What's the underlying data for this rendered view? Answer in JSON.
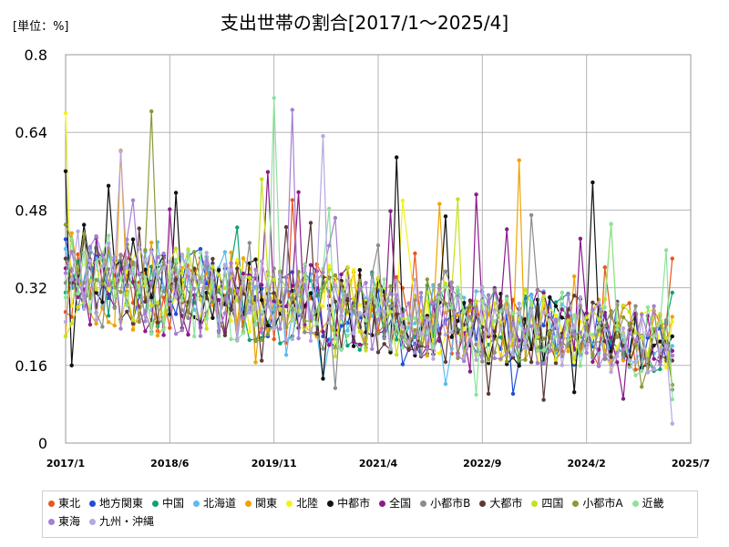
{
  "chart_data": {
    "type": "line",
    "title": "支出世帯の割合[2017/1～2025/4]",
    "unit_label": "[単位：%]",
    "x_ticks": [
      "2017/1",
      "2018/6",
      "2019/11",
      "2021/4",
      "2022/9",
      "2024/2",
      "2025/7"
    ],
    "x_range": [
      "2017/1",
      "2025/7"
    ],
    "y_ticks": [
      "0",
      "0.16",
      "0.32",
      "0.48",
      "0.64",
      "0.8"
    ],
    "ylim": [
      0,
      0.8
    ],
    "grid": true,
    "legend_position": "bottom",
    "series": [
      {
        "name": "東北",
        "color": "#e8561f",
        "seed": 11,
        "first": 0.27,
        "last": 0.38
      },
      {
        "name": "地方関東",
        "color": "#1f4fd8",
        "seed": 23,
        "first": 0.42,
        "last": 0.18
      },
      {
        "name": "中国",
        "color": "#11a074",
        "seed": 37,
        "first": 0.31,
        "last": 0.31
      },
      {
        "name": "北海道",
        "color": "#5bbcf0",
        "seed": 41,
        "first": 0.4,
        "last": 0.2
      },
      {
        "name": "関東",
        "color": "#f0a300",
        "seed": 53,
        "first": 0.22,
        "last": 0.26
      },
      {
        "name": "北陸",
        "color": "#f2f21a",
        "seed": 67,
        "first": 0.68,
        "last": 0.25
      },
      {
        "name": "中都市",
        "color": "#111111",
        "seed": 71,
        "first": 0.56,
        "last": 0.22
      },
      {
        "name": "全国",
        "color": "#8b1a8b",
        "seed": 83,
        "first": 0.36,
        "last": 0.19
      },
      {
        "name": "小都市B",
        "color": "#8c8c8c",
        "seed": 97,
        "first": 0.33,
        "last": 0.11
      },
      {
        "name": "大都市",
        "color": "#5c3a3a",
        "seed": 101,
        "first": 0.38,
        "last": 0.17
      },
      {
        "name": "四国",
        "color": "#c8e01e",
        "seed": 113,
        "first": 0.22,
        "last": 0.12
      },
      {
        "name": "小都市A",
        "color": "#8a9a3a",
        "seed": 127,
        "first": 0.45,
        "last": 0.12
      },
      {
        "name": "近畿",
        "color": "#8ee29a",
        "seed": 131,
        "first": 0.3,
        "last": 0.09
      },
      {
        "name": "東海",
        "color": "#a67fd0",
        "seed": 149,
        "first": 0.35,
        "last": 0.18
      },
      {
        "name": "九州・沖縄",
        "color": "#b7a7e0",
        "seed": 157,
        "first": 0.25,
        "last": 0.04
      }
    ]
  }
}
